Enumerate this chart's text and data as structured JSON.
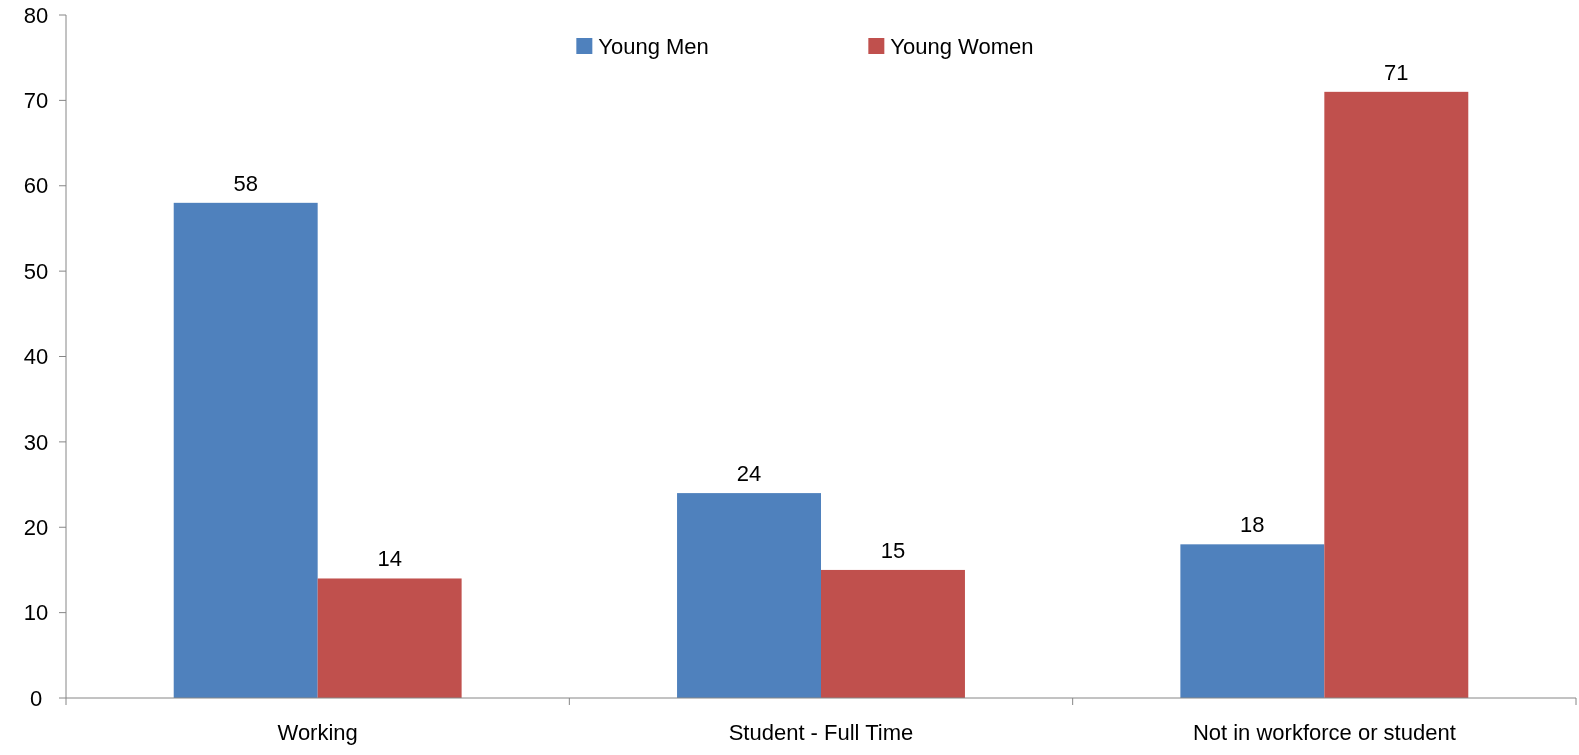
{
  "chart_data": {
    "type": "bar",
    "categories": [
      "Working",
      "Student - Full Time",
      "Not in workforce or student"
    ],
    "series": [
      {
        "name": "Young Men",
        "color": "#4f81bd",
        "values": [
          58,
          24,
          18
        ]
      },
      {
        "name": "Young Women",
        "color": "#c0504d",
        "values": [
          14,
          15,
          71
        ]
      }
    ],
    "ylim": [
      0,
      80
    ],
    "yticks": [
      0,
      10,
      20,
      30,
      40,
      50,
      60,
      70,
      80
    ],
    "data_labels": true,
    "legend": "top",
    "grid": false
  }
}
